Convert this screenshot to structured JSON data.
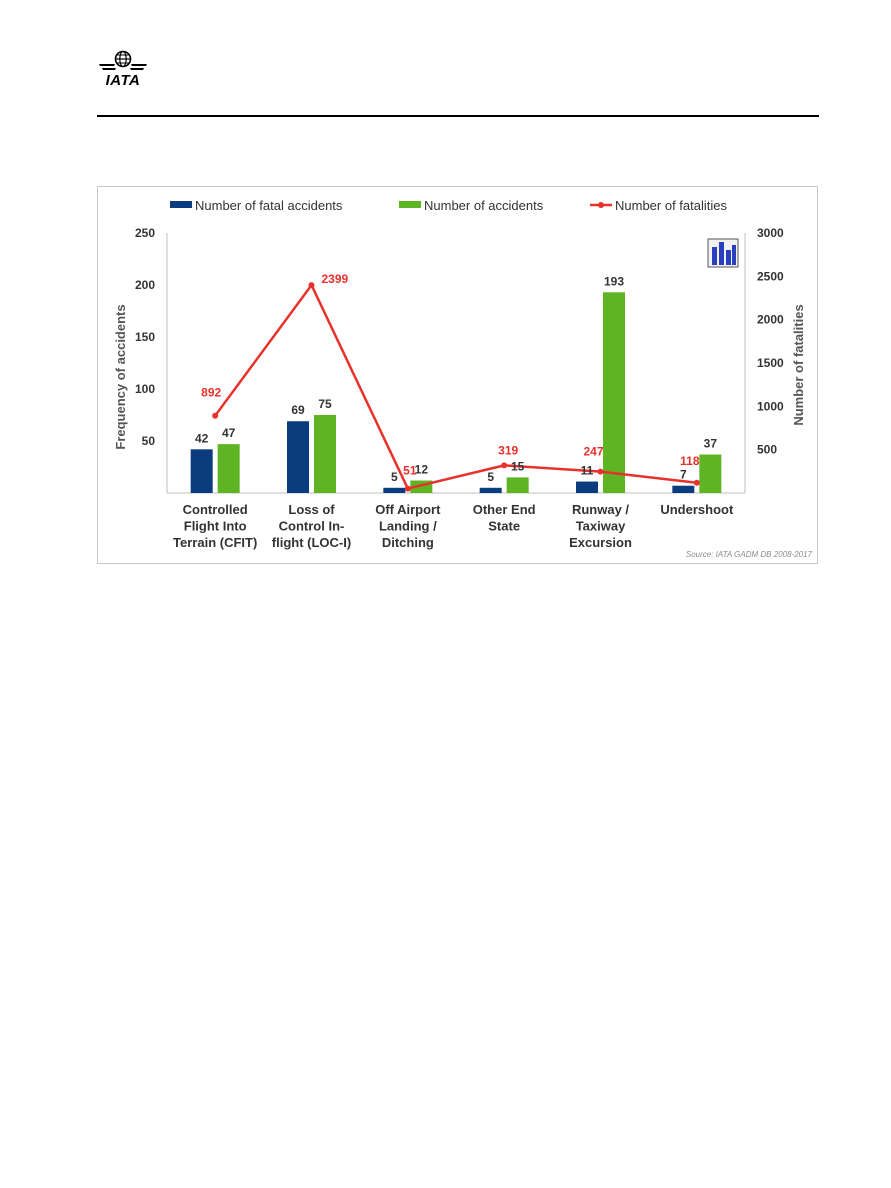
{
  "header": {
    "logo_text": "IATA"
  },
  "chart_data": {
    "type": "bar",
    "categories": [
      [
        "Controlled",
        "Flight Into",
        "Terrain (CFIT)"
      ],
      [
        "Loss  of",
        "Control  In-",
        "flight (LOC-I)"
      ],
      [
        "Off Airport",
        "Landing /",
        "Ditching"
      ],
      [
        "Other End",
        "State"
      ],
      [
        "Runway /",
        "Taxiway",
        "Excursion"
      ],
      [
        "Undershoot"
      ]
    ],
    "series": [
      {
        "name": "Number of fatal accidents",
        "type": "bar",
        "axis": "left",
        "color": "#0b3c7d",
        "values": [
          42,
          69,
          5,
          5,
          11,
          7
        ],
        "labels": [
          "42",
          "69",
          "5",
          "5",
          "11",
          "7"
        ]
      },
      {
        "name": "Number of accidents",
        "type": "bar",
        "axis": "left",
        "color": "#5fb424",
        "values": [
          47,
          75,
          12,
          15,
          193,
          37
        ],
        "labels": [
          "47",
          "75",
          "12",
          "15",
          "193",
          "37"
        ]
      },
      {
        "name": "Number of fatalities",
        "type": "line",
        "axis": "right",
        "color": "#e8312a",
        "values": [
          892,
          2399,
          51,
          319,
          247,
          118
        ],
        "labels": [
          "892",
          "2399",
          "51",
          "319",
          "247",
          "118"
        ]
      }
    ],
    "ylabel": "Frequency of accidents",
    "ylim": [
      0,
      250
    ],
    "yticks": [
      "50",
      "100",
      "150",
      "200",
      "250"
    ],
    "ytick_values": [
      50,
      100,
      150,
      200,
      250
    ],
    "y2label": "Number of fatalities",
    "y2lim": [
      0,
      3000
    ],
    "y2ticks": [
      "500",
      "1000",
      "1500",
      "2000",
      "2500",
      "3000"
    ],
    "y2tick_values": [
      500,
      1000,
      1500,
      2000,
      2500,
      3000
    ],
    "legend_position": "top",
    "grid": false,
    "source": "Source: IATA GADM DB 2008-2017",
    "label_color": "#e8312a",
    "text_color": "#333333"
  }
}
